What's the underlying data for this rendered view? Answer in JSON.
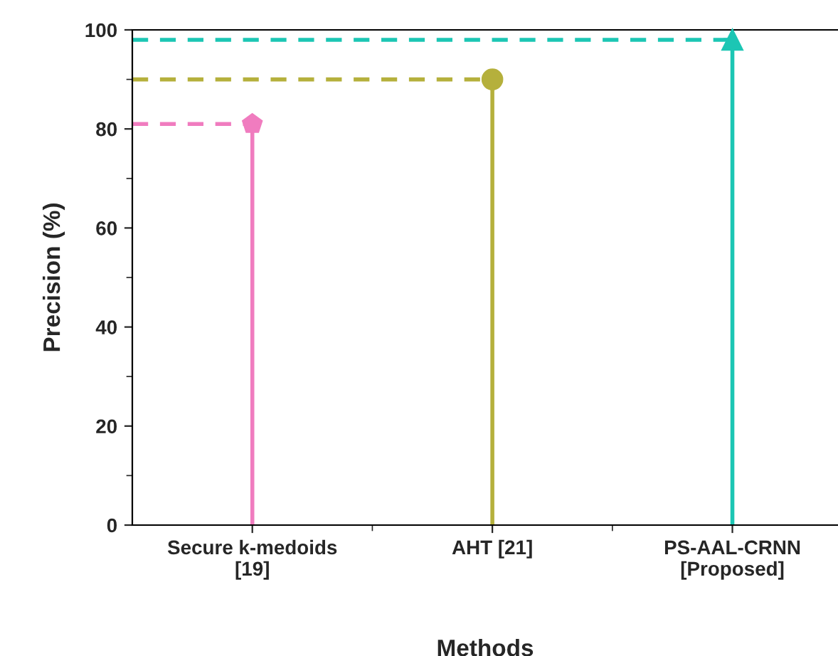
{
  "chart_data": {
    "type": "lollipop",
    "xlabel": "Methods",
    "ylabel": "Precision (%)",
    "categories": [
      "Secure k-medoids\n[19]",
      "AHT [21]",
      "PS-AAL-CRNN\n[Proposed]"
    ],
    "series": [
      {
        "color": "#f07cbf",
        "values": [
          81,
          null,
          null
        ]
      },
      {
        "color": "#b5b03c",
        "values": [
          null,
          90,
          null
        ],
        "marker": "circle"
      },
      {
        "color": "#1cc6b4",
        "values": [
          null,
          null,
          98
        ],
        "marker": "triangle"
      }
    ],
    "ref_lines": [
      {
        "axis": "y",
        "value": 81,
        "color": "#f07cbf",
        "line_style": "dashed"
      },
      {
        "axis": "y",
        "value": 90,
        "color": "#b5b03c",
        "line_style": "dashed"
      },
      {
        "axis": "y",
        "value": 98,
        "color": "#1cc6b4",
        "line_style": "dashed"
      }
    ],
    "ylim": [
      0,
      100
    ],
    "yticks": [
      0,
      20,
      40,
      60,
      80,
      100
    ],
    "grid": false,
    "legend": false
  }
}
